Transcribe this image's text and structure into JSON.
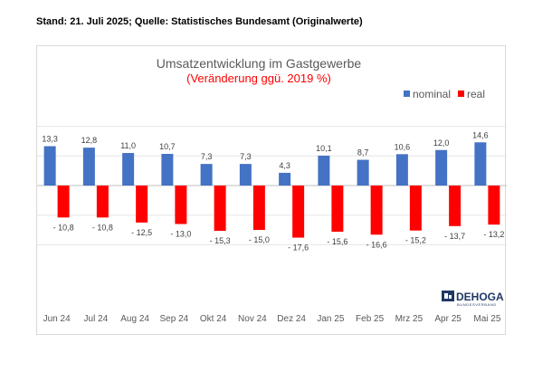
{
  "header": {
    "stand_text": "Stand: 21. Juli 2025; Quelle: Statistisches Bundesamt (Originalwerte)"
  },
  "logo": {
    "name": "DEHOGA",
    "subtitle": "BUNDESVERBAND"
  },
  "chart_data": {
    "type": "bar",
    "title": "Umsatzentwicklung im Gastgewerbe",
    "subtitle": "(Veränderung ggü. 2019 %)",
    "categories": [
      "Jun 24",
      "Jul 24",
      "Aug 24",
      "Sep 24",
      "Okt 24",
      "Nov 24",
      "Dez 24",
      "Jan 25",
      "Feb 25",
      "Mrz 25",
      "Apr 25",
      "Mai 25"
    ],
    "series": [
      {
        "name": "nominal",
        "color": "#4472c4",
        "values": [
          13.3,
          12.8,
          11.0,
          10.7,
          7.3,
          7.3,
          4.3,
          10.1,
          8.7,
          10.6,
          12.0,
          14.6
        ],
        "labels": [
          "13,3",
          "12,8",
          "11,0",
          "10,7",
          "7,3",
          "7,3",
          "4,3",
          "10,1",
          "8,7",
          "10,6",
          "12,0",
          "14,6"
        ]
      },
      {
        "name": "real",
        "color": "#ff0000",
        "values": [
          -10.8,
          -10.8,
          -12.5,
          -13.0,
          -15.3,
          -15.0,
          -17.6,
          -15.6,
          -16.6,
          -15.2,
          -13.7,
          -13.2
        ],
        "labels": [
          "- 10,8",
          "- 10,8",
          "- 12,5",
          "- 13,0",
          "- 15,3",
          "- 15,0",
          "- 17,6",
          "- 15,6",
          "- 16,6",
          "- 15,2",
          "- 13,7",
          "- 13,2"
        ]
      }
    ],
    "ylim": [
      -22,
      22
    ],
    "grid": true,
    "legend": "top-right",
    "xlabel": "",
    "ylabel": ""
  }
}
